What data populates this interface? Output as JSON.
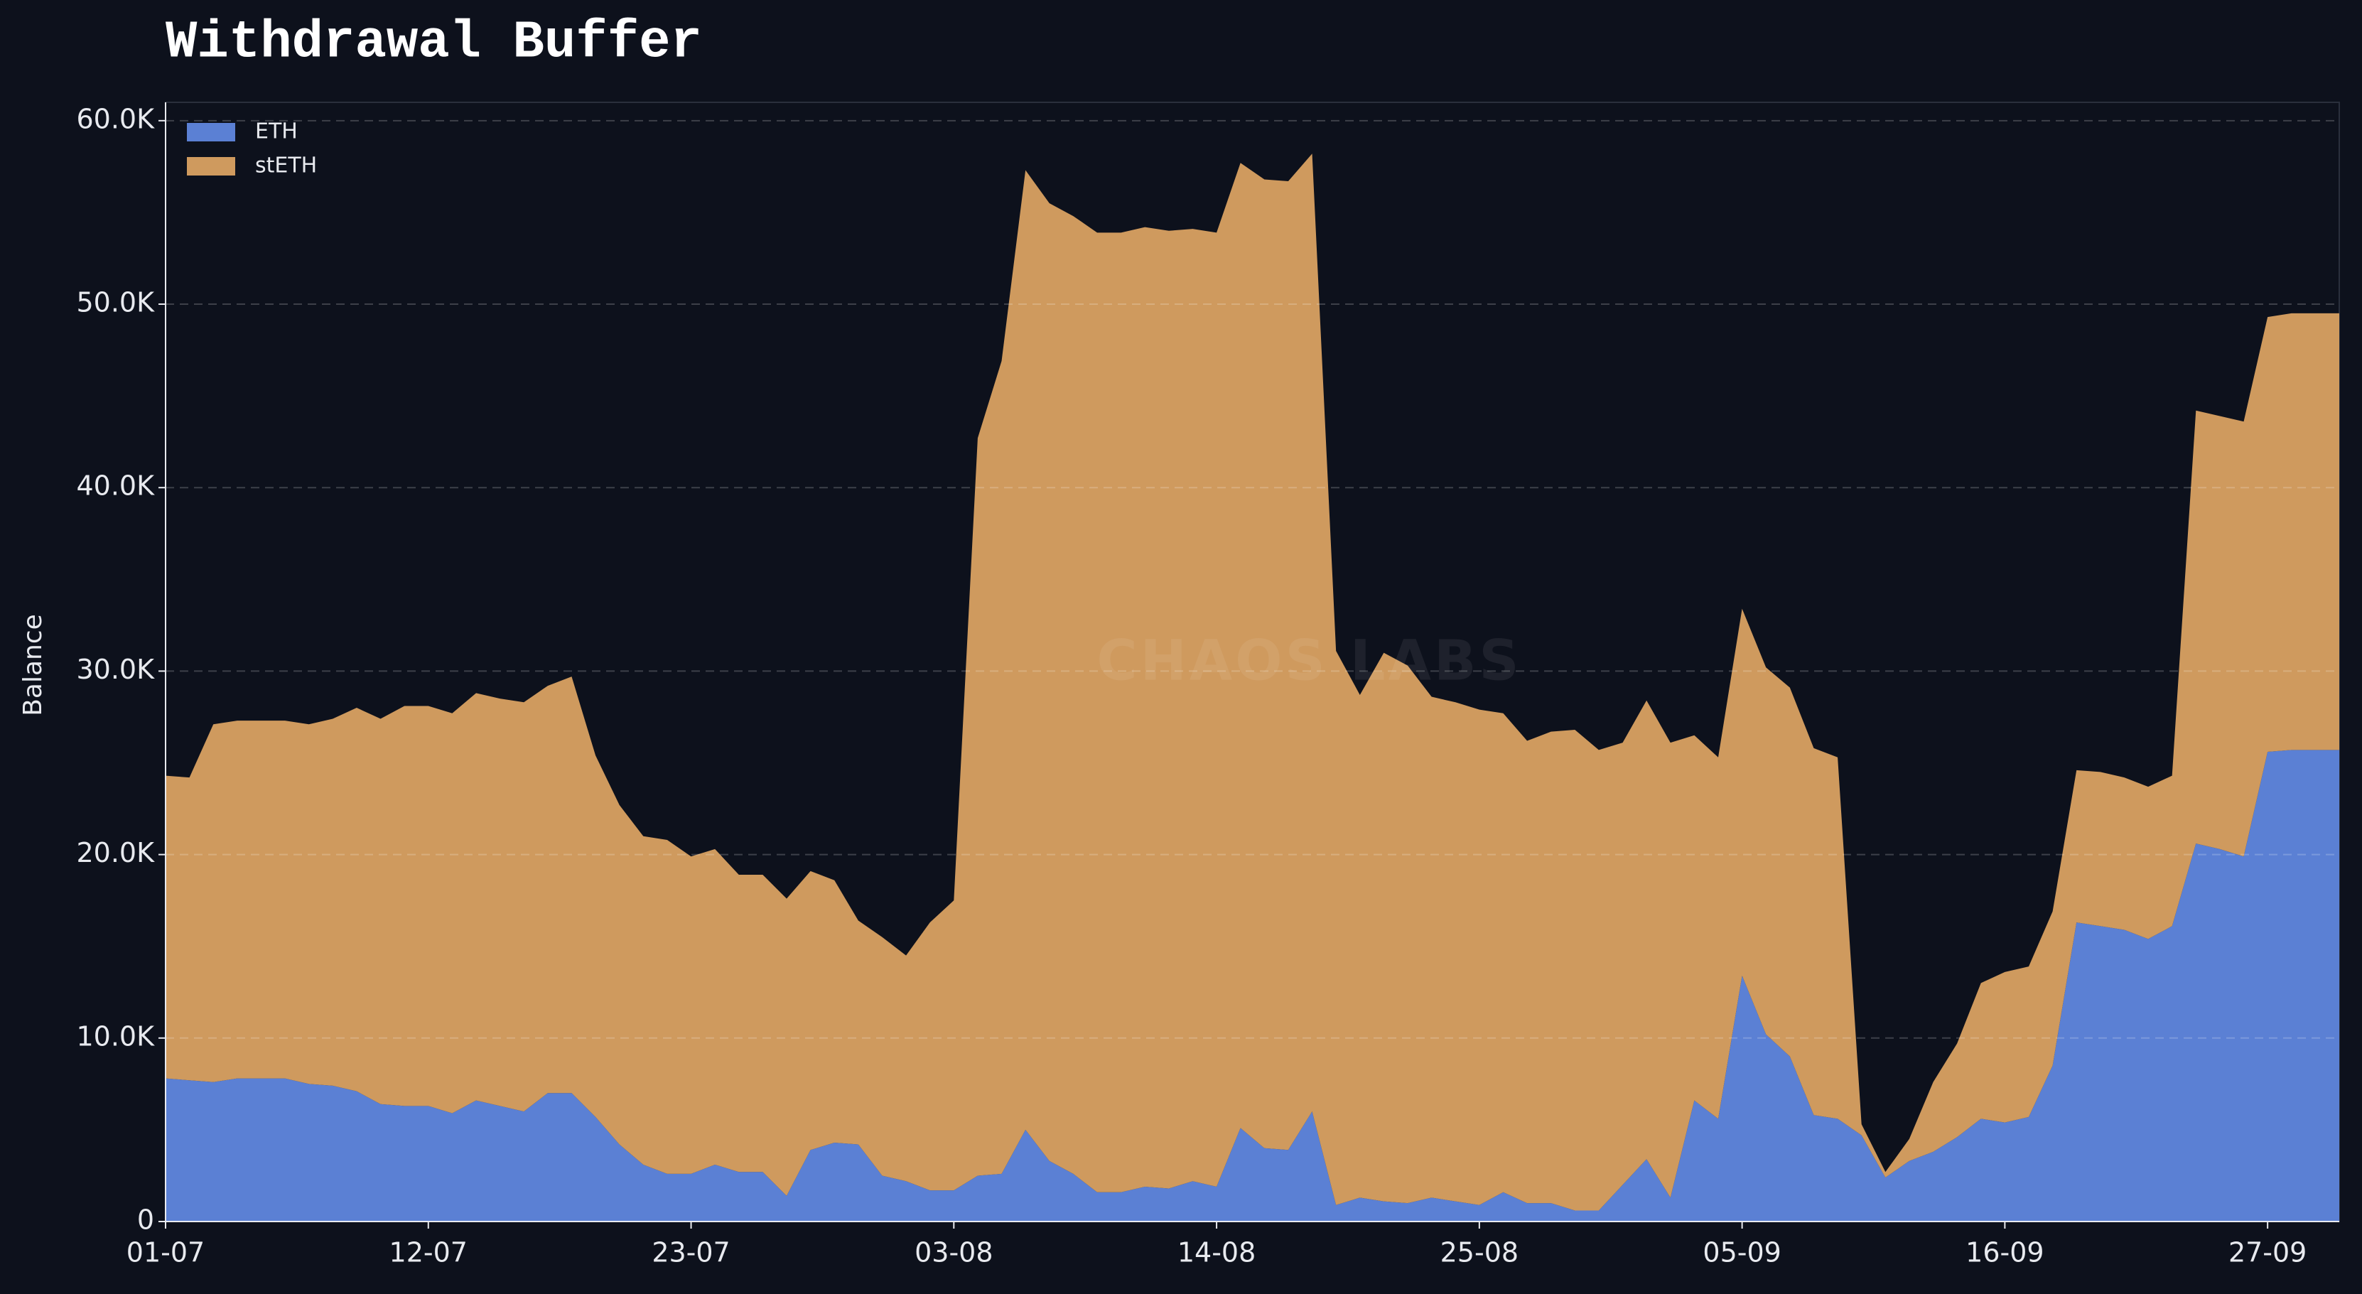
{
  "chart_data": {
    "type": "stacked_area",
    "title": "Withdrawal Buffer",
    "y_label": "Balance",
    "watermark": "CHAOS LABS",
    "legend_position": "upper left",
    "grid": true,
    "categories": [
      "01-07",
      null,
      null,
      null,
      null,
      null,
      null,
      null,
      null,
      null,
      null,
      "12-07",
      null,
      null,
      null,
      null,
      null,
      null,
      null,
      null,
      null,
      null,
      "23-07",
      null,
      null,
      null,
      null,
      null,
      null,
      null,
      null,
      null,
      null,
      "03-08",
      null,
      null,
      null,
      null,
      null,
      null,
      null,
      null,
      null,
      null,
      "14-08",
      null,
      null,
      null,
      null,
      null,
      null,
      null,
      null,
      null,
      null,
      "25-08",
      null,
      null,
      null,
      null,
      null,
      null,
      null,
      null,
      null,
      null,
      "05-09",
      null,
      null,
      null,
      null,
      null,
      null,
      null,
      null,
      null,
      null,
      "16-09",
      null,
      null,
      null,
      null,
      null,
      null,
      null,
      null,
      null,
      null,
      "27-09",
      null,
      null,
      null
    ],
    "ylim": [
      0,
      61000
    ],
    "yticks": [
      0,
      {
        "value": 10000,
        "label": "10.0K"
      },
      {
        "value": 20000,
        "label": "20.0K"
      },
      {
        "value": 30000,
        "label": "30.0K"
      },
      {
        "value": 40000,
        "label": "40.0K"
      },
      {
        "value": 50000,
        "label": "50.0K"
      },
      {
        "value": 60000,
        "label": "60.0K"
      }
    ],
    "series": [
      {
        "name": "ETH",
        "color": "#5b80d4",
        "values": [
          7800,
          7700,
          7600,
          7800,
          7800,
          7800,
          7500,
          7400,
          7100,
          6400,
          6300,
          6300,
          5900,
          6600,
          6300,
          6000,
          7000,
          7000,
          5700,
          4200,
          3100,
          2600,
          2600,
          3100,
          2700,
          2700,
          1400,
          3900,
          4300,
          4200,
          2500,
          2200,
          1700,
          1700,
          2500,
          2600,
          5000,
          3300,
          2600,
          1600,
          1600,
          1900,
          1800,
          2200,
          1900,
          5100,
          4000,
          3900,
          6000,
          900,
          1300,
          1100,
          1000,
          1300,
          1100,
          900,
          1600,
          1000,
          1000,
          600,
          600,
          2000,
          3400,
          1300,
          6600,
          5600,
          13400,
          10200,
          9000,
          5800,
          5600,
          4700,
          2400,
          3300,
          3800,
          4600,
          5600,
          5400,
          5700,
          8500,
          16300,
          16100,
          15900,
          15400,
          16100,
          20600,
          20300,
          19900,
          25600,
          25700,
          25700,
          25700
        ]
      },
      {
        "name": "stETH",
        "color": "#cf9a5e",
        "values": [
          16500,
          16500,
          19500,
          19500,
          19500,
          19500,
          19600,
          20000,
          20900,
          21000,
          21800,
          21800,
          21800,
          22200,
          22200,
          22300,
          22200,
          22700,
          19700,
          18500,
          17900,
          18200,
          17300,
          17200,
          16200,
          16200,
          16200,
          15200,
          14300,
          12200,
          13000,
          12300,
          14600,
          15800,
          40200,
          44300,
          52300,
          52200,
          52200,
          52300,
          52300,
          52300,
          52200,
          51900,
          52000,
          52600,
          52800,
          52800,
          52200,
          30200,
          27400,
          29900,
          29300,
          27300,
          27200,
          27000,
          26100,
          25200,
          25700,
          26200,
          25100,
          24100,
          25000,
          24800,
          19900,
          19700,
          20000,
          20000,
          20100,
          20000,
          19700,
          600,
          300,
          1200,
          3800,
          5100,
          7400,
          8200,
          8200,
          8400,
          8300,
          8400,
          8300,
          8300,
          8200,
          23600,
          23600,
          23700,
          23700,
          23800,
          23800,
          23800
        ]
      }
    ]
  }
}
